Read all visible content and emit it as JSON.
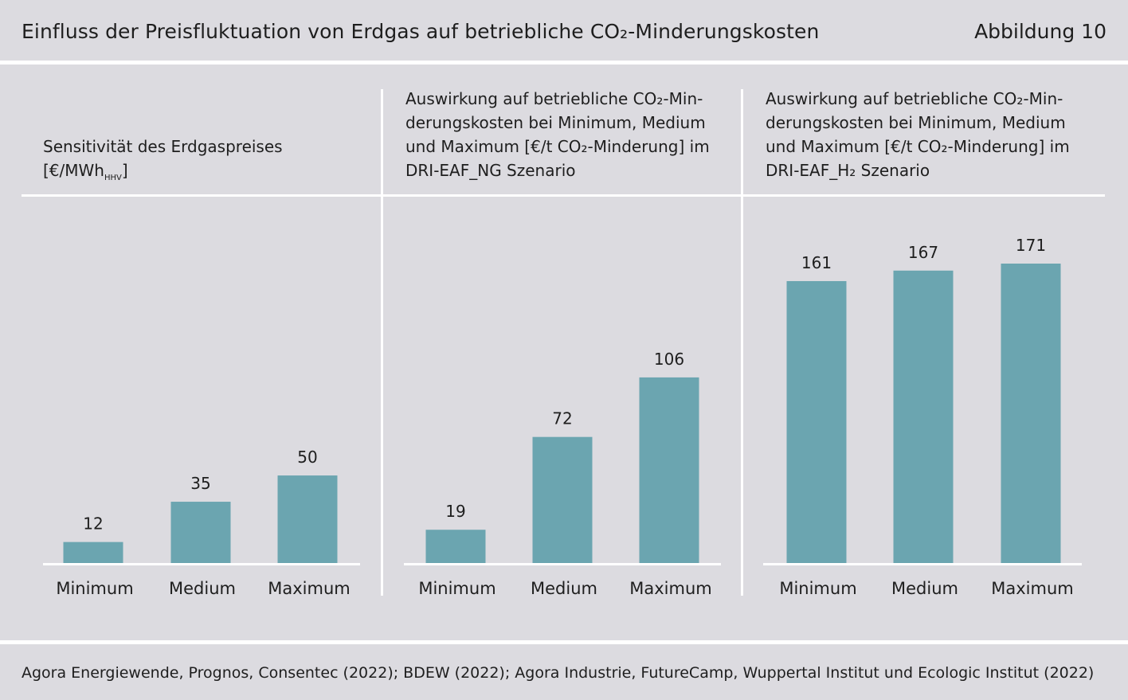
{
  "header": {
    "title": "Einfluss der Preisfluktuation von Erdgas auf betriebliche CO₂-Minderungskosten",
    "figure_label": "Abbildung 10"
  },
  "colors": {
    "bar": "#6ba5b0",
    "background": "#dcdbe0",
    "rule": "#ffffff"
  },
  "chart_data": [
    {
      "type": "bar",
      "title_lines": [
        "Sensitivität des Erdgaspreises",
        "[€/MWh",
        "HHV",
        "]"
      ],
      "categories": [
        "Minimum",
        "Medium",
        "Maximum"
      ],
      "values": [
        12,
        35,
        50
      ],
      "value_labels": [
        "12",
        "35",
        "50"
      ],
      "ylim": [
        0,
        171
      ]
    },
    {
      "type": "bar",
      "title_lines": [
        "Auswirkung auf betriebliche CO₂-Min-",
        "derungskosten bei Minimum, Medium",
        "und Maximum [€/t CO₂-Minderung] im",
        "DRI-EAF_NG Szenario"
      ],
      "categories": [
        "Minimum",
        "Medium",
        "Maximum"
      ],
      "values": [
        19,
        72,
        106
      ],
      "value_labels": [
        "19",
        "72",
        "106"
      ],
      "ylim": [
        0,
        171
      ]
    },
    {
      "type": "bar",
      "title_lines": [
        "Auswirkung auf betriebliche CO₂-Min-",
        "derungskosten bei Minimum, Medium",
        "und Maximum [€/t CO₂-Minderung] im",
        "DRI-EAF_H₂ Szenario"
      ],
      "categories": [
        "Minimum",
        "Medium",
        "Maximum"
      ],
      "values": [
        161,
        167,
        171
      ],
      "value_labels": [
        "161",
        "167",
        "171"
      ],
      "ylim": [
        0,
        171
      ]
    }
  ],
  "footer": {
    "source": "Agora Energiewende, Prognos, Consentec (2022); BDEW (2022); Agora Industrie, FutureCamp, Wuppertal Institut und Ecologic Institut (2022)"
  }
}
